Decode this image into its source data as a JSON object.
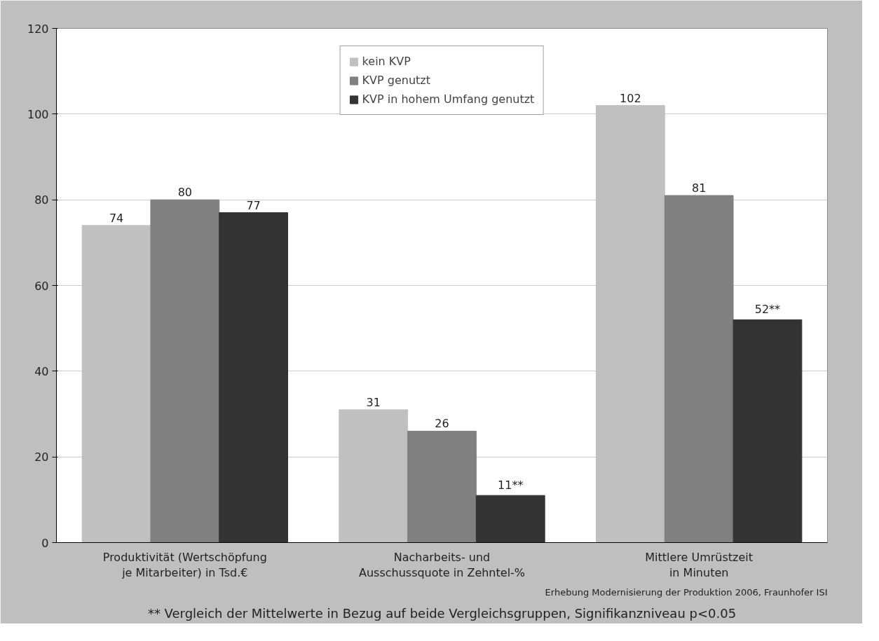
{
  "chart_data": {
    "type": "bar",
    "categories": [
      "Produktivität (Wertschöpfung\nje Mitarbeiter) in Tsd.€",
      "Nacharbeits- und\nAusschussquote in Zehntel-%",
      "Mittlere Umrüstzeit\nin Minuten"
    ],
    "series": [
      {
        "name": "kein KVP",
        "color": "#c0c0c0",
        "values": [
          74,
          31,
          102
        ],
        "value_labels": [
          "74",
          "31",
          "102"
        ]
      },
      {
        "name": "KVP genutzt",
        "color": "#808080",
        "values": [
          80,
          26,
          81
        ],
        "value_labels": [
          "80",
          "26",
          "81"
        ]
      },
      {
        "name": "KVP in hohem Umfang genutzt",
        "color": "#333333",
        "values": [
          77,
          11,
          52
        ],
        "value_labels": [
          "77",
          "11**",
          "52**"
        ]
      }
    ],
    "ylim": [
      0,
      120
    ],
    "yticks": [
      0,
      20,
      40,
      60,
      80,
      100,
      120
    ],
    "grid": "y",
    "legend": "top",
    "annotations": [
      "** Vergleich der Mittelwerte in Bezug auf beide Vergleichsgruppen, Signifikanzniveau p<0.05",
      "Erhebung Modernisierung der Produktion 2006, Fraunhofer ISI"
    ]
  }
}
